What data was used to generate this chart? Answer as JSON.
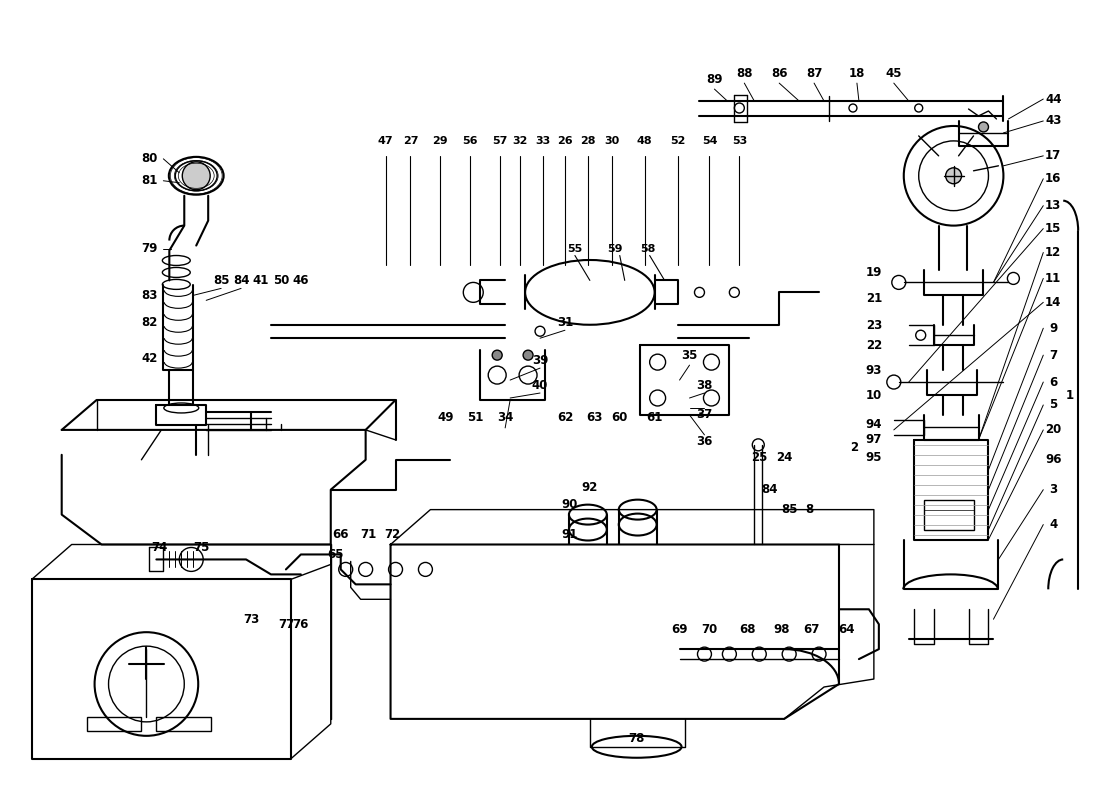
{
  "bg_color": "#ffffff",
  "line_color": "#000000",
  "text_color": "#000000",
  "fig_width": 11.0,
  "fig_height": 8.0,
  "dpi": 100
}
